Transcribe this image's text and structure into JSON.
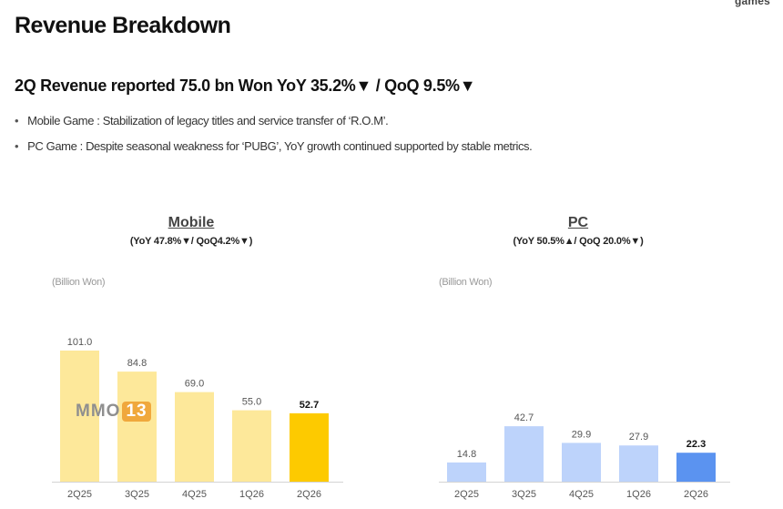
{
  "header": {
    "logo_text": "games",
    "title": "Revenue Breakdown",
    "subtitle": "2Q Revenue reported 75.0 bn Won YoY 35.2%▼ / QoQ 9.5%▼"
  },
  "bullets": [
    "Mobile Game : Stabilization of legacy titles and service transfer of ‘R.O.M’.",
    "PC Game : Despite seasonal weakness for ‘PUBG’, YoY growth continued supported by stable metrics."
  ],
  "watermark": {
    "text": "MMO",
    "num": "13"
  },
  "chart_data": [
    {
      "type": "bar",
      "title": "Mobile",
      "subtitle": "(YoY 47.8%▼/ QoQ4.2%▼)",
      "unit_label": "(Billion Won)",
      "categories": [
        "2Q25",
        "3Q25",
        "4Q25",
        "1Q26",
        "2Q26"
      ],
      "values": [
        101.0,
        84.8,
        69.0,
        55.0,
        52.7
      ],
      "labels": [
        "101.0",
        "84.8",
        "69.0",
        "55.0",
        "52.7"
      ],
      "colors": [
        "#fde89a",
        "#fde89a",
        "#fde89a",
        "#fde89a",
        "#fdca00"
      ],
      "ylim": [
        0,
        101.0
      ],
      "grid": false
    },
    {
      "type": "bar",
      "title": "PC",
      "subtitle": "(YoY 50.5%▲/ QoQ 20.0%▼)",
      "unit_label": "(Billion Won)",
      "categories": [
        "2Q25",
        "3Q25",
        "4Q25",
        "1Q26",
        "2Q26"
      ],
      "values": [
        14.8,
        42.7,
        29.9,
        27.9,
        22.3
      ],
      "labels": [
        "14.8",
        "42.7",
        "29.9",
        "27.9",
        "22.3"
      ],
      "colors": [
        "#bdd3fb",
        "#bdd3fb",
        "#bdd3fb",
        "#bdd3fb",
        "#5b93f0"
      ],
      "ylim": [
        0,
        101.0
      ],
      "grid": false
    }
  ]
}
